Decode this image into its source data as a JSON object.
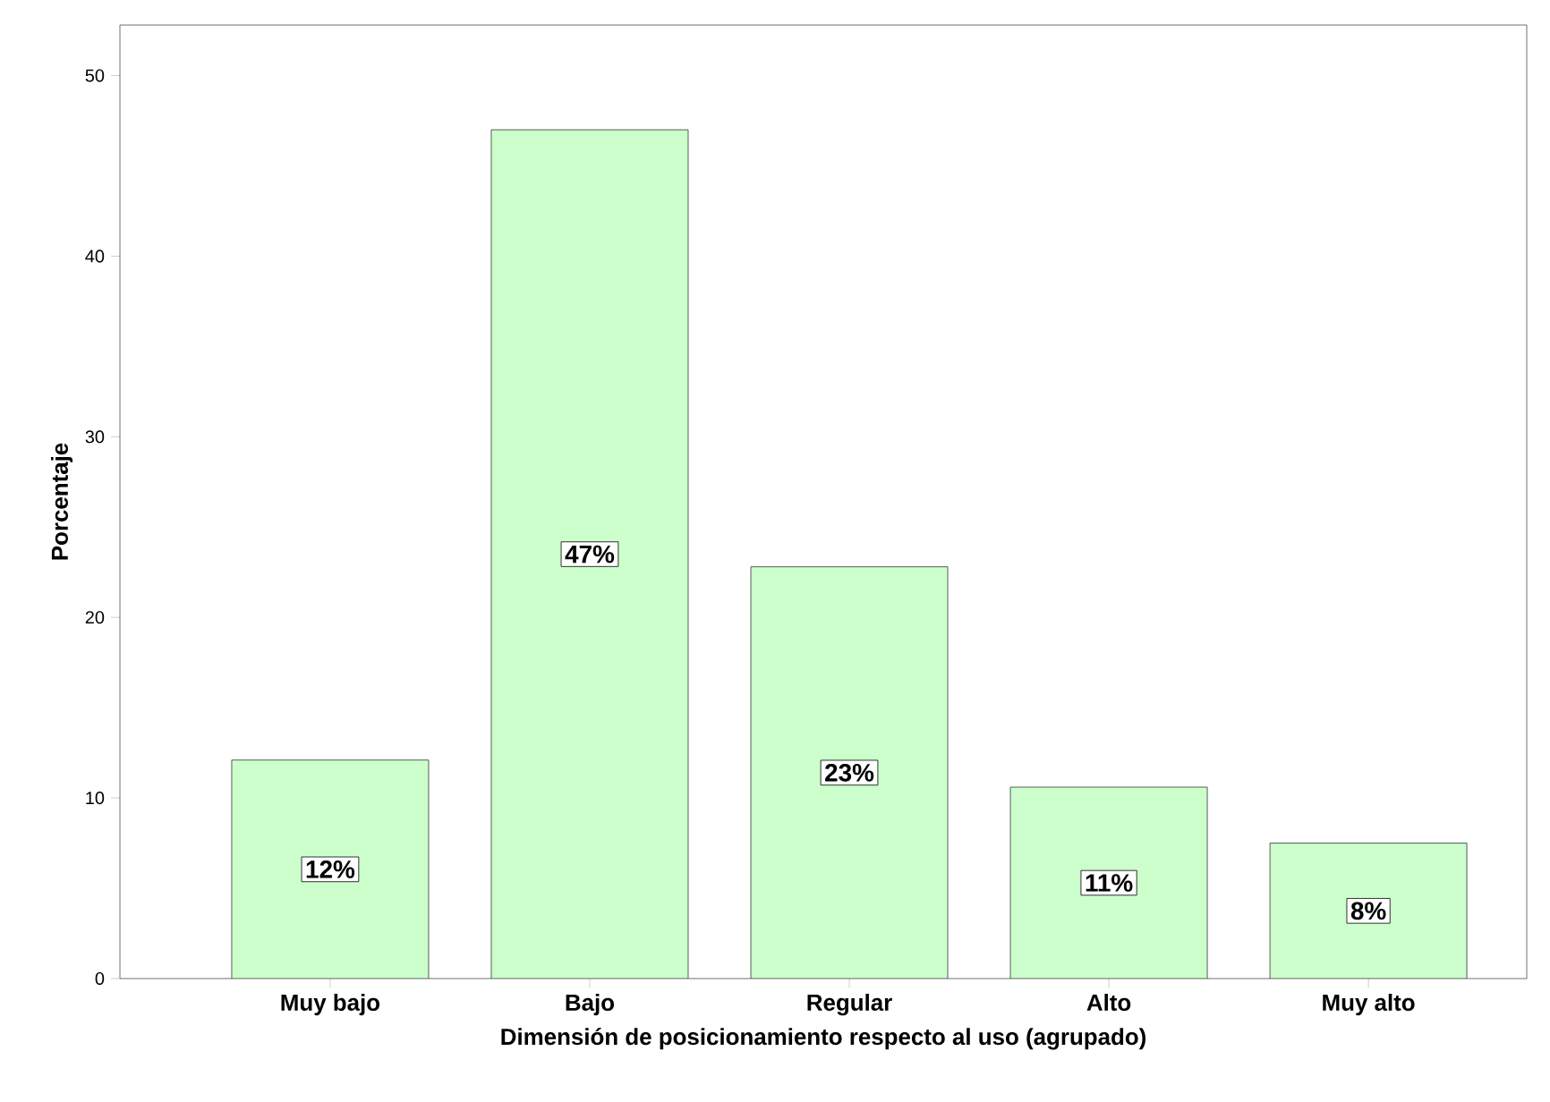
{
  "chart_data": {
    "type": "bar",
    "xlabel": "Dimensión de posicionamiento respecto al uso (agrupado)",
    "ylabel": "Porcentaje",
    "categories": [
      "Muy bajo",
      "Bajo",
      "Regular",
      "Alto",
      "Muy alto"
    ],
    "values": [
      12.1,
      47.0,
      22.8,
      10.6,
      7.5
    ],
    "value_labels": [
      "12%",
      "47%",
      "23%",
      "11%",
      "8%"
    ],
    "color": "#ccffcc",
    "ylim": [
      0,
      52.8
    ],
    "yticks": [
      0,
      10,
      20,
      30,
      40,
      50
    ],
    "grid": false
  }
}
